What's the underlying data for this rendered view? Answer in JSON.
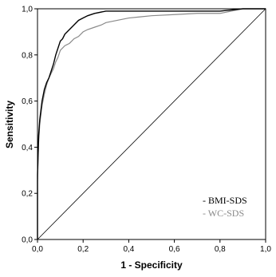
{
  "chart_data": {
    "type": "line",
    "xlabel": "1 - Specificity",
    "ylabel": "Sensitivity",
    "xlim": [
      0,
      1
    ],
    "ylim": [
      0,
      1
    ],
    "x_ticks": [
      "0,0",
      "0,2",
      "0,4",
      "0,6",
      "0,8",
      "1,0"
    ],
    "y_ticks": [
      "0,0",
      "0,2",
      "0,4",
      "0,6",
      "0,8",
      "1,0"
    ],
    "grid": false,
    "legend_position": "bottom-right",
    "reference_line": true,
    "series": [
      {
        "name": "- BMI-SDS",
        "color": "#000000",
        "x": [
          0,
          0,
          0.005,
          0.01,
          0.02,
          0.03,
          0.04,
          0.05,
          0.06,
          0.07,
          0.08,
          0.09,
          0.1,
          0.11,
          0.12,
          0.14,
          0.16,
          0.18,
          0.2,
          0.22,
          0.25,
          0.3,
          0.35,
          0.4,
          0.5,
          0.6,
          0.7,
          0.8,
          0.85,
          0.9,
          1.0
        ],
        "y": [
          0,
          0.28,
          0.45,
          0.52,
          0.6,
          0.65,
          0.68,
          0.7,
          0.73,
          0.76,
          0.8,
          0.83,
          0.86,
          0.87,
          0.89,
          0.91,
          0.93,
          0.95,
          0.96,
          0.97,
          0.98,
          0.99,
          0.99,
          0.99,
          0.99,
          0.99,
          0.99,
          0.99,
          0.995,
          1.0,
          1.0
        ]
      },
      {
        "name": "- WC-SDS",
        "color": "#8a8a8a",
        "x": [
          0,
          0,
          0.005,
          0.01,
          0.02,
          0.03,
          0.04,
          0.05,
          0.06,
          0.07,
          0.08,
          0.09,
          0.1,
          0.12,
          0.14,
          0.16,
          0.18,
          0.2,
          0.22,
          0.25,
          0.28,
          0.3,
          0.35,
          0.4,
          0.45,
          0.5,
          0.6,
          0.7,
          0.8,
          0.85,
          0.9,
          1.0
        ],
        "y": [
          0,
          0.25,
          0.42,
          0.5,
          0.58,
          0.63,
          0.67,
          0.7,
          0.72,
          0.74,
          0.77,
          0.79,
          0.82,
          0.84,
          0.85,
          0.87,
          0.88,
          0.9,
          0.91,
          0.92,
          0.93,
          0.94,
          0.95,
          0.96,
          0.965,
          0.97,
          0.975,
          0.98,
          0.98,
          0.99,
          1.0,
          1.0
        ]
      }
    ]
  }
}
